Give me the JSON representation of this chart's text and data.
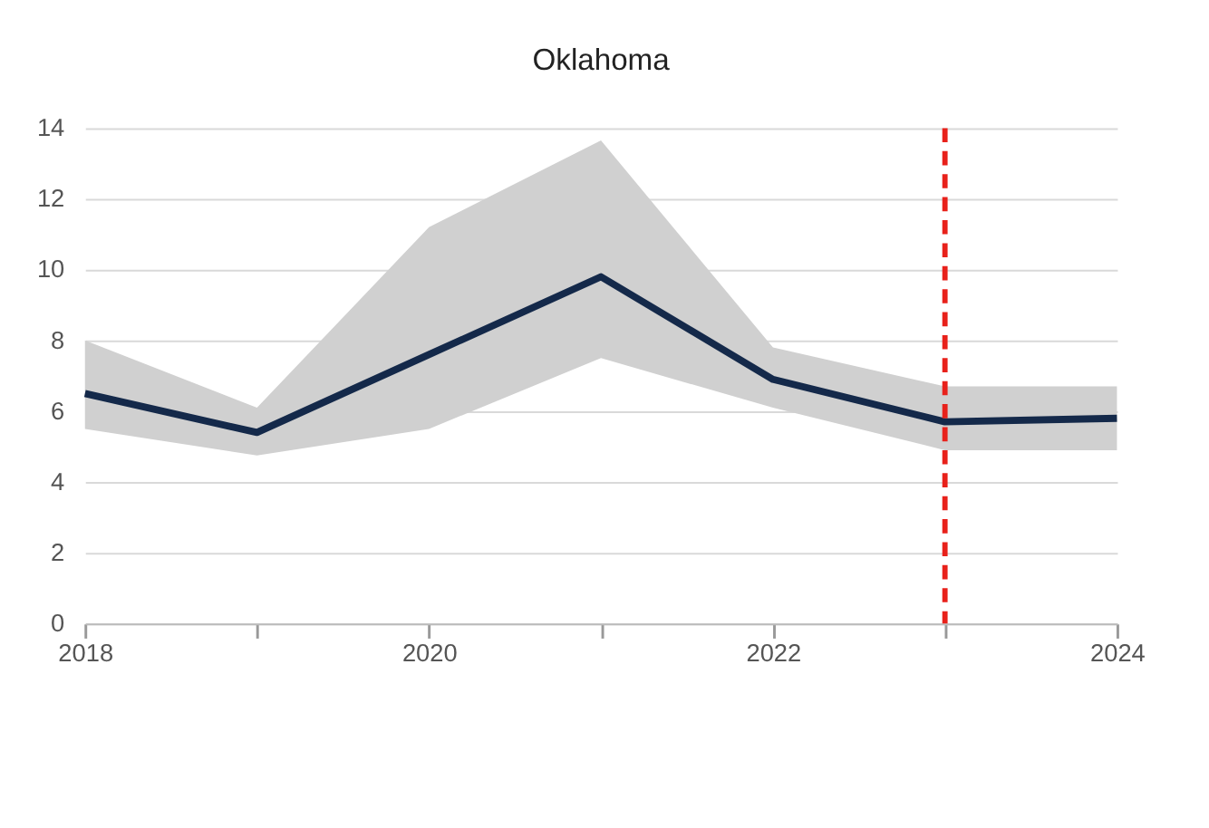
{
  "chart_data": {
    "type": "line",
    "title": "Oklahoma",
    "x": [
      2018,
      2019,
      2020,
      2021,
      2022,
      2023,
      2024
    ],
    "series": [
      {
        "color": "#14294a",
        "values": [
          6.5,
          5.4,
          7.6,
          9.8,
          6.9,
          5.7,
          5.8
        ],
        "lower": [
          5.5,
          4.75,
          5.5,
          7.5,
          6.1,
          4.9,
          4.9
        ],
        "upper": [
          8.0,
          6.1,
          11.2,
          13.65,
          7.8,
          6.7,
          6.7
        ]
      }
    ],
    "xlim": [
      2018,
      2024
    ],
    "xticks": [
      2018,
      {
        "value": 2019,
        "label": null
      },
      2020,
      {
        "value": 2021,
        "label": null
      },
      2022,
      {
        "value": 2023,
        "label": null
      },
      2024
    ],
    "ylim": [
      0,
      14
    ],
    "yticks": [
      0,
      2,
      4,
      6,
      8,
      10,
      12,
      14
    ],
    "grid": "y",
    "marker": "none",
    "line_style": "solid",
    "ref_lines": [
      {
        "axis": "x",
        "value": 2023,
        "color": "#e8211b",
        "line_style": "dashed"
      }
    ]
  }
}
